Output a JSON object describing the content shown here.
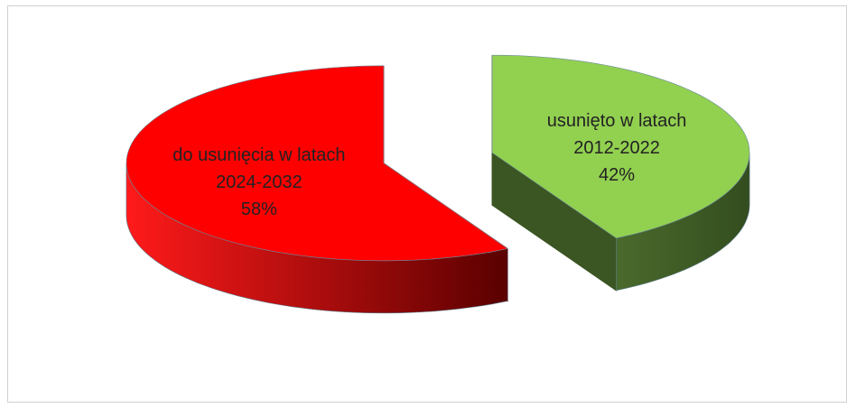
{
  "chart_data": {
    "type": "pie3d",
    "categories": [
      "usunięto w latach 2012-2022",
      "do usunięcia w latach 2024-2032"
    ],
    "values": [
      42,
      58
    ],
    "value_labels": [
      "42%",
      "58%"
    ],
    "colors": [
      "#92d050",
      "#ff0000"
    ],
    "side_colors": [
      "#3b5523",
      "#9a0000"
    ],
    "exploded": true
  }
}
